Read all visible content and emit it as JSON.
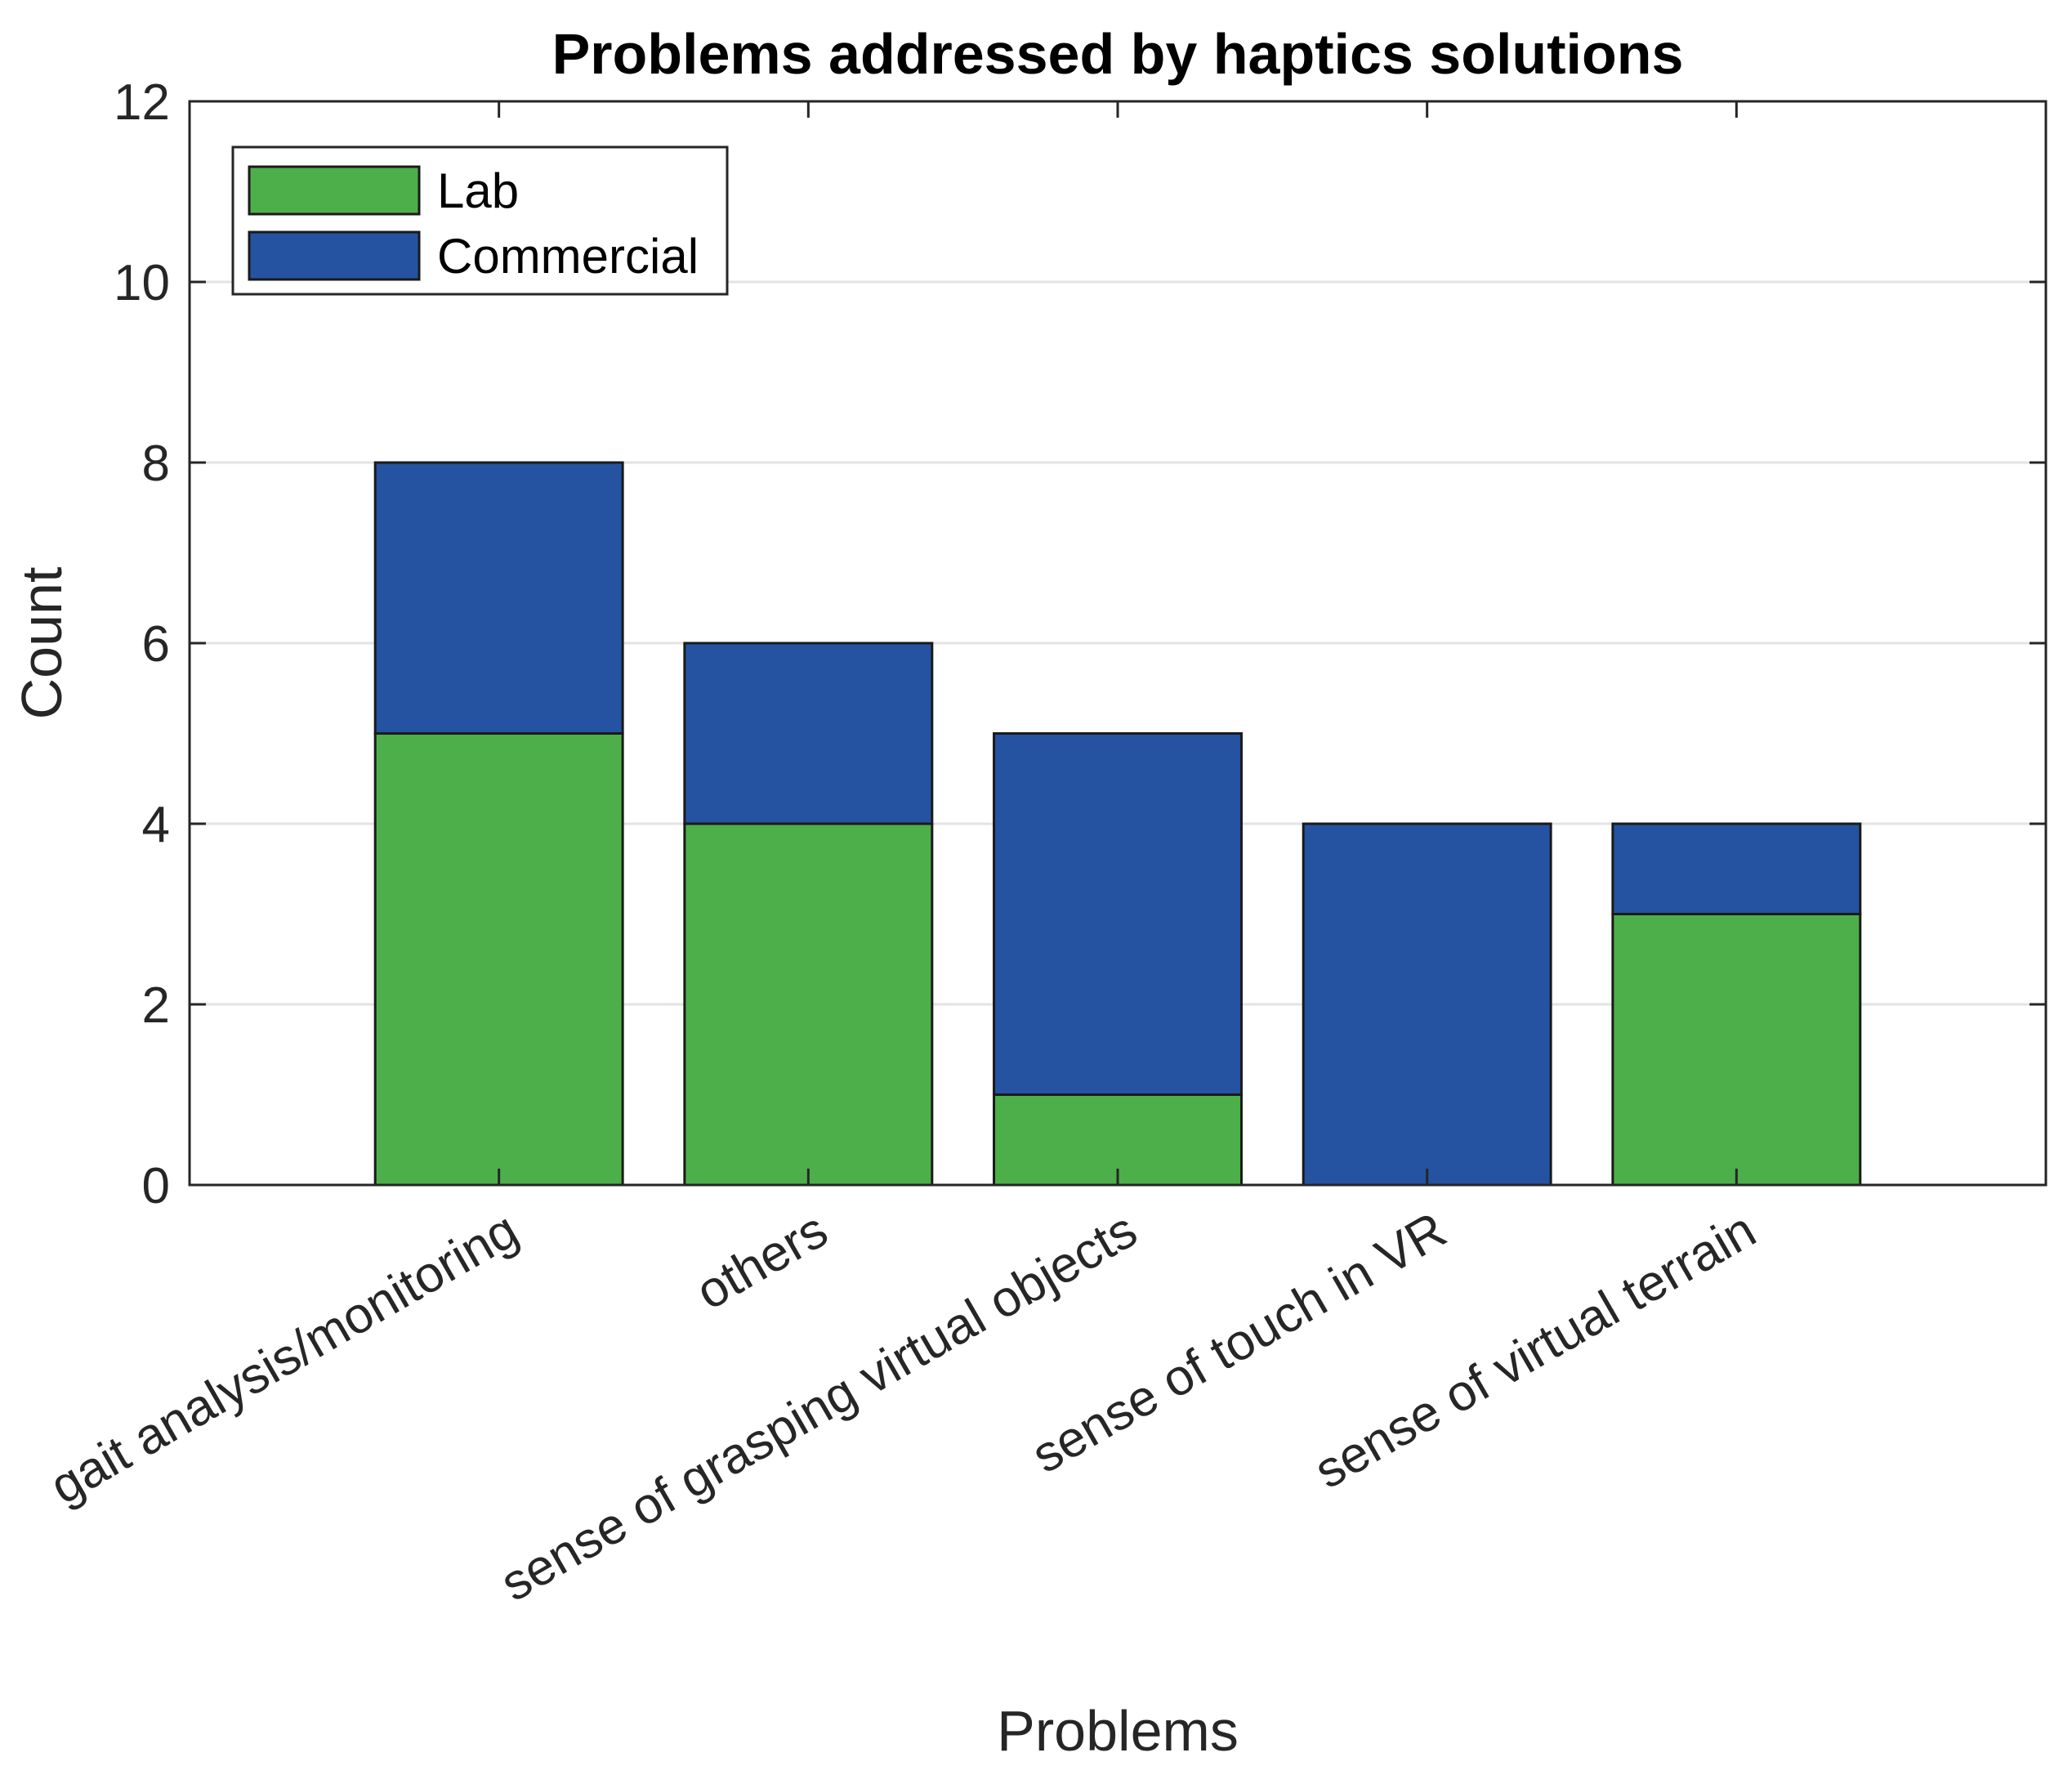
{
  "chart_data": {
    "type": "bar",
    "stacked": true,
    "title": "Problems addressed by haptics solutions",
    "xlabel": "Problems",
    "ylabel": "Count",
    "ylim": [
      0,
      12
    ],
    "yticks": [
      "0",
      "2",
      "4",
      "6",
      "8",
      "10",
      "12"
    ],
    "grid": "horizontal",
    "legend_placement": "top-left",
    "categories": [
      "gait analysis/monitoring",
      "others",
      "sense of grasping virtual objects",
      "sense of touch in VR",
      "sense of virtual terrain"
    ],
    "series": [
      {
        "name": "Lab",
        "values": [
          5,
          4,
          1,
          0,
          3
        ],
        "color": "#4daf4a"
      },
      {
        "name": "Commercial",
        "values": [
          3,
          2,
          4,
          4,
          1
        ],
        "color": "#2553a1"
      }
    ]
  }
}
